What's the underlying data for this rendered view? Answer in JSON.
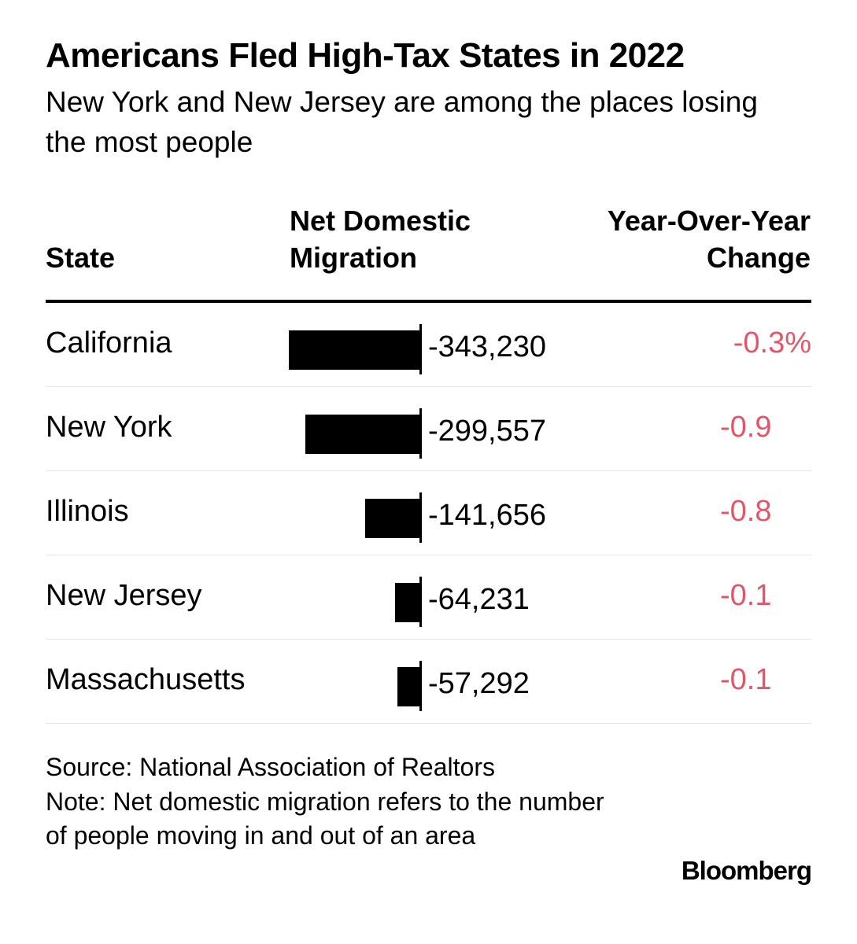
{
  "chart_data": {
    "type": "table",
    "title": "Americans Fled High-Tax States in 2022",
    "subtitle": "New York and New Jersey are among the places losing the most people",
    "columns": [
      "State",
      "Net Domestic Migration",
      "Year-Over-Year Change"
    ],
    "rows": [
      {
        "state": "California",
        "net_migration": -343230,
        "net_migration_label": "-343,230",
        "yoy_change": "-0.3%"
      },
      {
        "state": "New York",
        "net_migration": -299557,
        "net_migration_label": "-299,557",
        "yoy_change": "-0.9"
      },
      {
        "state": "Illinois",
        "net_migration": -141656,
        "net_migration_label": "-141,656",
        "yoy_change": "-0.8"
      },
      {
        "state": "New Jersey",
        "net_migration": -64231,
        "net_migration_label": "-64,231",
        "yoy_change": "-0.1"
      },
      {
        "state": "Massachusetts",
        "net_migration": -57292,
        "net_migration_label": "-57,292",
        "yoy_change": "-0.1"
      }
    ],
    "bar_max": 343230
  },
  "colors": {
    "negative": "#e05769",
    "bar": "#000000"
  },
  "footer": {
    "source": "Source: National Association of Realtors",
    "note": "Note: Net domestic migration refers to the number of people moving in and out of an area"
  },
  "brand": "Bloomberg"
}
